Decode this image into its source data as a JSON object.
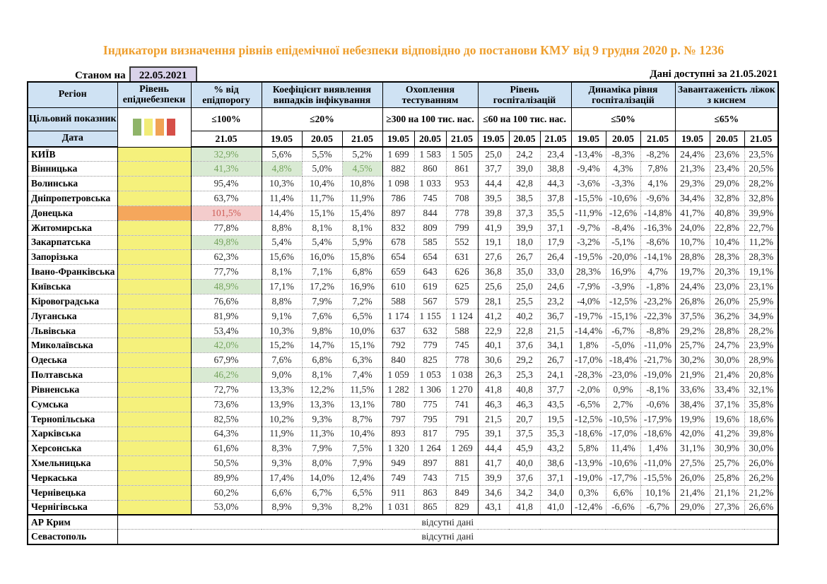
{
  "title": "Індикатори визначення рівнів епідемічної небезпеки відповідно до постанови КМУ від 9 грудня 2020 р. № 1236",
  "meta": {
    "as_of_label": "Станом на",
    "as_of_date": "22.05.2021",
    "available_label": "Дані доступні за  21.05.2021"
  },
  "colors": {
    "title_orange": "#EE9F2F",
    "header_blue": "#cfe2f3",
    "asof_lavender": "#d9d2e9",
    "level_yellow": "#f5f17c",
    "level_orange": "#f5a75c",
    "state_green_bg": "#d9ead3",
    "state_green_text": "#74a25c",
    "state_red_bg": "#f4cccc",
    "state_red_text": "#cd5c55",
    "legend": [
      {
        "name": "green",
        "hex": "#8fb469"
      },
      {
        "name": "yellow",
        "hex": "#f1ec78"
      },
      {
        "name": "orange",
        "hex": "#f0a355"
      },
      {
        "name": "red",
        "hex": "#d64f48"
      }
    ]
  },
  "table": {
    "region_label": "Регіон",
    "level_label": "Рівень епіднебезпеки",
    "target_label": "Цільовий показник",
    "date_label": "Дата",
    "no_data_text": "відсутні дані",
    "groups": [
      {
        "label": "% від епідпорогу",
        "target": "≤100%",
        "dates": [
          "21.05"
        ]
      },
      {
        "label": "Коефіцієнт виявлення випадків інфікування",
        "target": "≤20%",
        "dates": [
          "19.05",
          "20.05",
          "21.05"
        ]
      },
      {
        "label": "Охоплення тестуванням",
        "target": "≥300 на 100 тис. нас.",
        "dates": [
          "19.05",
          "20.05",
          "21.05"
        ]
      },
      {
        "label": "Рівень госпіталізацій",
        "target": "≤60 на 100 тис. нас.",
        "dates": [
          "19.05",
          "20.05",
          "21.05"
        ]
      },
      {
        "label": "Динаміка рівня госпіталізацій",
        "target": "≤50%",
        "dates": [
          "19.05",
          "20.05",
          "21.05"
        ]
      },
      {
        "label": "Завантаженість ліжок з киснем",
        "target": "≤65%",
        "dates": [
          "19.05",
          "20.05",
          "21.05"
        ]
      }
    ],
    "rows": [
      {
        "region": "КИЇВ",
        "level": "yellow",
        "pct": "32,9%",
        "pct_state": "green",
        "coef": [
          "5,6%",
          "5,5%",
          "5,2%"
        ],
        "test": [
          "1 699",
          "1 583",
          "1 505"
        ],
        "hosp": [
          "25,0",
          "24,2",
          "23,4"
        ],
        "dyn": [
          "-13,4%",
          "-8,3%",
          "-8,2%"
        ],
        "beds": [
          "24,4%",
          "23,6%",
          "23,5%"
        ]
      },
      {
        "region": "Вінницька",
        "level": "yellow",
        "pct": "41,3%",
        "pct_state": "green",
        "coef": [
          "4,8%",
          "5,0%",
          "4,5%"
        ],
        "coef_states": [
          "green",
          null,
          "green"
        ],
        "test": [
          "882",
          "860",
          "861"
        ],
        "hosp": [
          "37,7",
          "39,0",
          "38,8"
        ],
        "dyn": [
          "-9,4%",
          "4,3%",
          "7,8%"
        ],
        "beds": [
          "21,3%",
          "23,4%",
          "20,5%"
        ]
      },
      {
        "region": "Волинська",
        "level": "yellow",
        "pct": "95,4%",
        "coef": [
          "10,3%",
          "10,4%",
          "10,8%"
        ],
        "test": [
          "1 098",
          "1 033",
          "953"
        ],
        "hosp": [
          "44,4",
          "42,8",
          "44,3"
        ],
        "dyn": [
          "-3,6%",
          "-3,3%",
          "4,1%"
        ],
        "beds": [
          "29,3%",
          "29,0%",
          "28,2%"
        ]
      },
      {
        "region": "Дніпропетровська",
        "level": "yellow",
        "pct": "63,7%",
        "coef": [
          "11,4%",
          "11,7%",
          "11,9%"
        ],
        "test": [
          "786",
          "745",
          "708"
        ],
        "hosp": [
          "39,5",
          "38,5",
          "37,8"
        ],
        "dyn": [
          "-15,5%",
          "-10,6%",
          "-9,6%"
        ],
        "beds": [
          "34,4%",
          "32,8%",
          "32,8%"
        ]
      },
      {
        "region": "Донецька",
        "level": "orange",
        "pct": "101,5%",
        "pct_state": "red",
        "coef": [
          "14,4%",
          "15,1%",
          "15,4%"
        ],
        "test": [
          "897",
          "844",
          "778"
        ],
        "hosp": [
          "39,8",
          "37,3",
          "35,5"
        ],
        "dyn": [
          "-11,9%",
          "-12,6%",
          "-14,8%"
        ],
        "beds": [
          "41,7%",
          "40,8%",
          "39,9%"
        ]
      },
      {
        "region": "Житомирська",
        "level": "yellow",
        "pct": "77,8%",
        "coef": [
          "8,8%",
          "8,1%",
          "8,1%"
        ],
        "test": [
          "832",
          "809",
          "799"
        ],
        "hosp": [
          "41,9",
          "39,9",
          "37,1"
        ],
        "dyn": [
          "-9,7%",
          "-8,4%",
          "-16,3%"
        ],
        "beds": [
          "24,0%",
          "22,8%",
          "22,7%"
        ]
      },
      {
        "region": "Закарпатська",
        "level": "yellow",
        "pct": "49,8%",
        "pct_state": "green",
        "coef": [
          "5,4%",
          "5,4%",
          "5,9%"
        ],
        "test": [
          "678",
          "585",
          "552"
        ],
        "hosp": [
          "19,1",
          "18,0",
          "17,9"
        ],
        "dyn": [
          "-3,2%",
          "-5,1%",
          "-8,6%"
        ],
        "beds": [
          "10,7%",
          "10,4%",
          "11,2%"
        ]
      },
      {
        "region": "Запорізька",
        "level": "yellow",
        "pct": "62,3%",
        "coef": [
          "15,6%",
          "16,0%",
          "15,8%"
        ],
        "test": [
          "654",
          "654",
          "631"
        ],
        "hosp": [
          "27,6",
          "26,7",
          "26,4"
        ],
        "dyn": [
          "-19,5%",
          "-20,0%",
          "-14,1%"
        ],
        "beds": [
          "28,8%",
          "28,3%",
          "28,3%"
        ]
      },
      {
        "region": "Івано-Франківська",
        "level": "yellow",
        "pct": "77,7%",
        "coef": [
          "8,1%",
          "7,1%",
          "6,8%"
        ],
        "test": [
          "659",
          "643",
          "626"
        ],
        "hosp": [
          "36,8",
          "35,0",
          "33,0"
        ],
        "dyn": [
          "28,3%",
          "16,9%",
          "4,7%"
        ],
        "beds": [
          "19,7%",
          "20,3%",
          "19,1%"
        ]
      },
      {
        "region": "Київська",
        "level": "yellow",
        "pct": "48,9%",
        "pct_state": "green",
        "coef": [
          "17,1%",
          "17,2%",
          "16,9%"
        ],
        "test": [
          "610",
          "619",
          "625"
        ],
        "hosp": [
          "25,6",
          "25,0",
          "24,6"
        ],
        "dyn": [
          "-7,9%",
          "-3,9%",
          "-1,8%"
        ],
        "beds": [
          "24,4%",
          "23,0%",
          "23,1%"
        ]
      },
      {
        "region": "Кіровоградська",
        "level": "yellow",
        "pct": "76,6%",
        "coef": [
          "8,8%",
          "7,9%",
          "7,2%"
        ],
        "test": [
          "588",
          "567",
          "579"
        ],
        "hosp": [
          "28,1",
          "25,5",
          "23,2"
        ],
        "dyn": [
          "-4,0%",
          "-12,5%",
          "-23,2%"
        ],
        "beds": [
          "26,8%",
          "26,0%",
          "25,9%"
        ]
      },
      {
        "region": "Луганська",
        "level": "yellow",
        "pct": "81,9%",
        "coef": [
          "9,1%",
          "7,6%",
          "6,5%"
        ],
        "test": [
          "1 174",
          "1 155",
          "1 124"
        ],
        "hosp": [
          "41,2",
          "40,2",
          "36,7"
        ],
        "dyn": [
          "-19,7%",
          "-15,1%",
          "-22,3%"
        ],
        "beds": [
          "37,5%",
          "36,2%",
          "34,9%"
        ]
      },
      {
        "region": "Львівська",
        "level": "yellow",
        "pct": "53,4%",
        "coef": [
          "10,3%",
          "9,8%",
          "10,0%"
        ],
        "test": [
          "637",
          "632",
          "588"
        ],
        "hosp": [
          "22,9",
          "22,8",
          "21,5"
        ],
        "dyn": [
          "-14,4%",
          "-6,7%",
          "-8,8%"
        ],
        "beds": [
          "29,2%",
          "28,8%",
          "28,2%"
        ]
      },
      {
        "region": "Миколаївська",
        "level": "yellow",
        "pct": "42,0%",
        "pct_state": "green",
        "coef": [
          "15,2%",
          "14,7%",
          "15,1%"
        ],
        "test": [
          "792",
          "779",
          "745"
        ],
        "hosp": [
          "40,1",
          "37,6",
          "34,1"
        ],
        "dyn": [
          "1,8%",
          "-5,0%",
          "-11,0%"
        ],
        "beds": [
          "25,7%",
          "24,7%",
          "23,9%"
        ]
      },
      {
        "region": "Одеська",
        "level": "yellow",
        "pct": "67,9%",
        "coef": [
          "7,6%",
          "6,8%",
          "6,3%"
        ],
        "test": [
          "840",
          "825",
          "778"
        ],
        "hosp": [
          "30,6",
          "29,2",
          "26,7"
        ],
        "dyn": [
          "-17,0%",
          "-18,4%",
          "-21,7%"
        ],
        "beds": [
          "30,2%",
          "30,0%",
          "28,9%"
        ]
      },
      {
        "region": "Полтавська",
        "level": "yellow",
        "pct": "46,2%",
        "pct_state": "green",
        "coef": [
          "9,0%",
          "8,1%",
          "7,4%"
        ],
        "test": [
          "1 059",
          "1 053",
          "1 038"
        ],
        "hosp": [
          "26,3",
          "25,3",
          "24,1"
        ],
        "dyn": [
          "-28,3%",
          "-23,0%",
          "-19,0%"
        ],
        "beds": [
          "21,9%",
          "21,4%",
          "20,8%"
        ]
      },
      {
        "region": "Рівненська",
        "level": "yellow",
        "pct": "72,7%",
        "coef": [
          "13,3%",
          "12,2%",
          "11,5%"
        ],
        "test": [
          "1 282",
          "1 306",
          "1 270"
        ],
        "hosp": [
          "41,8",
          "40,8",
          "37,7"
        ],
        "dyn": [
          "-2,0%",
          "0,9%",
          "-8,1%"
        ],
        "beds": [
          "33,6%",
          "33,4%",
          "32,1%"
        ]
      },
      {
        "region": "Сумська",
        "level": "yellow",
        "pct": "73,6%",
        "coef": [
          "13,9%",
          "13,3%",
          "13,1%"
        ],
        "test": [
          "780",
          "775",
          "741"
        ],
        "hosp": [
          "46,3",
          "46,3",
          "43,5"
        ],
        "dyn": [
          "-6,5%",
          "2,7%",
          "-0,6%"
        ],
        "beds": [
          "38,4%",
          "37,1%",
          "35,8%"
        ]
      },
      {
        "region": "Тернопільська",
        "level": "yellow",
        "pct": "82,5%",
        "coef": [
          "10,2%",
          "9,3%",
          "8,7%"
        ],
        "test": [
          "797",
          "795",
          "791"
        ],
        "hosp": [
          "21,5",
          "20,7",
          "19,5"
        ],
        "dyn": [
          "-12,5%",
          "-10,5%",
          "-17,9%"
        ],
        "beds": [
          "19,9%",
          "19,6%",
          "18,6%"
        ]
      },
      {
        "region": "Харківська",
        "level": "yellow",
        "pct": "64,3%",
        "coef": [
          "11,9%",
          "11,3%",
          "10,4%"
        ],
        "test": [
          "893",
          "817",
          "795"
        ],
        "hosp": [
          "39,1",
          "37,5",
          "35,3"
        ],
        "dyn": [
          "-18,6%",
          "-17,0%",
          "-18,6%"
        ],
        "beds": [
          "42,0%",
          "41,2%",
          "39,8%"
        ]
      },
      {
        "region": "Херсонська",
        "level": "yellow",
        "pct": "61,6%",
        "coef": [
          "8,3%",
          "7,9%",
          "7,5%"
        ],
        "test": [
          "1 320",
          "1 264",
          "1 269"
        ],
        "hosp": [
          "44,4",
          "45,9",
          "43,2"
        ],
        "dyn": [
          "5,8%",
          "11,4%",
          "1,4%"
        ],
        "beds": [
          "31,1%",
          "30,9%",
          "30,0%"
        ]
      },
      {
        "region": "Хмельницька",
        "level": "yellow",
        "pct": "50,5%",
        "coef": [
          "9,3%",
          "8,0%",
          "7,9%"
        ],
        "test": [
          "949",
          "897",
          "881"
        ],
        "hosp": [
          "41,7",
          "40,0",
          "38,6"
        ],
        "dyn": [
          "-13,9%",
          "-10,6%",
          "-11,0%"
        ],
        "beds": [
          "27,5%",
          "25,7%",
          "26,0%"
        ]
      },
      {
        "region": "Черкаська",
        "level": "yellow",
        "pct": "89,9%",
        "coef": [
          "17,4%",
          "14,0%",
          "12,4%"
        ],
        "test": [
          "749",
          "743",
          "715"
        ],
        "hosp": [
          "39,9",
          "37,6",
          "37,1"
        ],
        "dyn": [
          "-19,0%",
          "-17,7%",
          "-15,5%"
        ],
        "beds": [
          "26,0%",
          "25,8%",
          "26,2%"
        ]
      },
      {
        "region": "Чернівецька",
        "level": "yellow",
        "pct": "60,2%",
        "coef": [
          "6,6%",
          "6,7%",
          "6,5%"
        ],
        "test": [
          "911",
          "863",
          "849"
        ],
        "hosp": [
          "34,6",
          "34,2",
          "34,0"
        ],
        "dyn": [
          "0,3%",
          "6,6%",
          "10,1%"
        ],
        "beds": [
          "21,4%",
          "21,1%",
          "21,2%"
        ]
      },
      {
        "region": "Чернігівська",
        "level": "yellow",
        "pct": "53,0%",
        "coef": [
          "8,9%",
          "9,3%",
          "8,2%"
        ],
        "test": [
          "1 031",
          "865",
          "829"
        ],
        "hosp": [
          "43,1",
          "41,8",
          "41,0"
        ],
        "dyn": [
          "-12,4%",
          "-6,6%",
          "-6,7%"
        ],
        "beds": [
          "29,0%",
          "27,3%",
          "26,6%"
        ]
      }
    ],
    "no_data_rows": [
      {
        "region": "АР Крим"
      },
      {
        "region": "Севастополь"
      }
    ]
  }
}
